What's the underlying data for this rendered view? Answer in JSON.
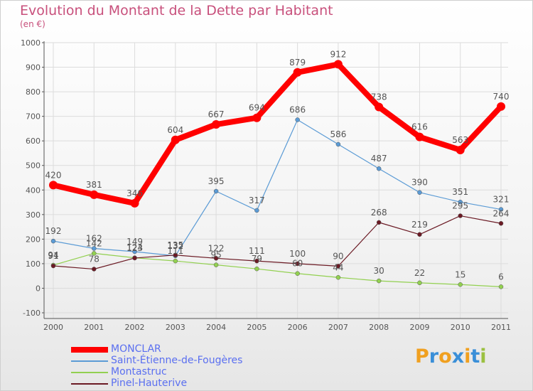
{
  "header": {
    "title": "Evolution du Montant de la Dette par Habitant",
    "unit": "(en €)"
  },
  "colors": {
    "title": "#c8507c",
    "legend_text": "#5a6ff0",
    "grid": "#dcdcdc",
    "axis": "#555555",
    "labels": "#555555"
  },
  "logo": {
    "letters": [
      "P",
      "r",
      "o",
      "x",
      "i",
      "t",
      "i"
    ],
    "colors": [
      "#f0a020",
      "#3a8fd8",
      "#f0a020",
      "#3a8fd8",
      "#f0a020",
      "#3a8fd8",
      "#9bc040"
    ]
  },
  "chart_data": {
    "type": "line",
    "x": [
      "2000",
      "2001",
      "2002",
      "2003",
      "2004",
      "2005",
      "2006",
      "2007",
      "2008",
      "2009",
      "2010",
      "2011"
    ],
    "ylim": [
      -100,
      1000
    ],
    "yticks": [
      "-100",
      "0",
      "100",
      "200",
      "300",
      "400",
      "500",
      "600",
      "700",
      "800",
      "900",
      "1000"
    ],
    "grid": true,
    "legend_position": "bottom-left",
    "series": [
      {
        "name": "MONCLAR",
        "color": "#ff0000",
        "values": [
          420,
          381,
          346,
          604,
          667,
          694,
          879,
          912,
          738,
          616,
          563,
          740
        ],
        "labels": [
          "420",
          "381",
          "346",
          "604",
          "667",
          "694",
          "879",
          "912",
          "738",
          "616",
          "563",
          "740"
        ]
      },
      {
        "name": "Saint-Étienne-de-Fougères",
        "color": "#5b9bd5",
        "values": [
          192,
          162,
          149,
          132,
          395,
          317,
          686,
          586,
          487,
          390,
          351,
          321
        ],
        "labels": [
          "192",
          "162",
          "149",
          "132",
          "395",
          "317",
          "686",
          "586",
          "487",
          "390",
          "351",
          "321"
        ]
      },
      {
        "name": "Montastruc",
        "color": "#92d050",
        "values": [
          94,
          142,
          124,
          111,
          95,
          79,
          60,
          44,
          30,
          22,
          15,
          6
        ],
        "labels": [
          "94",
          "142",
          "124",
          "111",
          "95",
          "79",
          "60",
          "44",
          "30",
          "22",
          "15",
          "6"
        ]
      },
      {
        "name": "Pinel-Hauterive",
        "color": "#6b1a24",
        "values": [
          91,
          78,
          123,
          135,
          122,
          111,
          100,
          90,
          268,
          219,
          295,
          264
        ],
        "labels": [
          "91",
          "78",
          "123",
          "135",
          "122",
          "111",
          "100",
          "90",
          "268",
          "219",
          "295",
          "264"
        ]
      }
    ]
  }
}
